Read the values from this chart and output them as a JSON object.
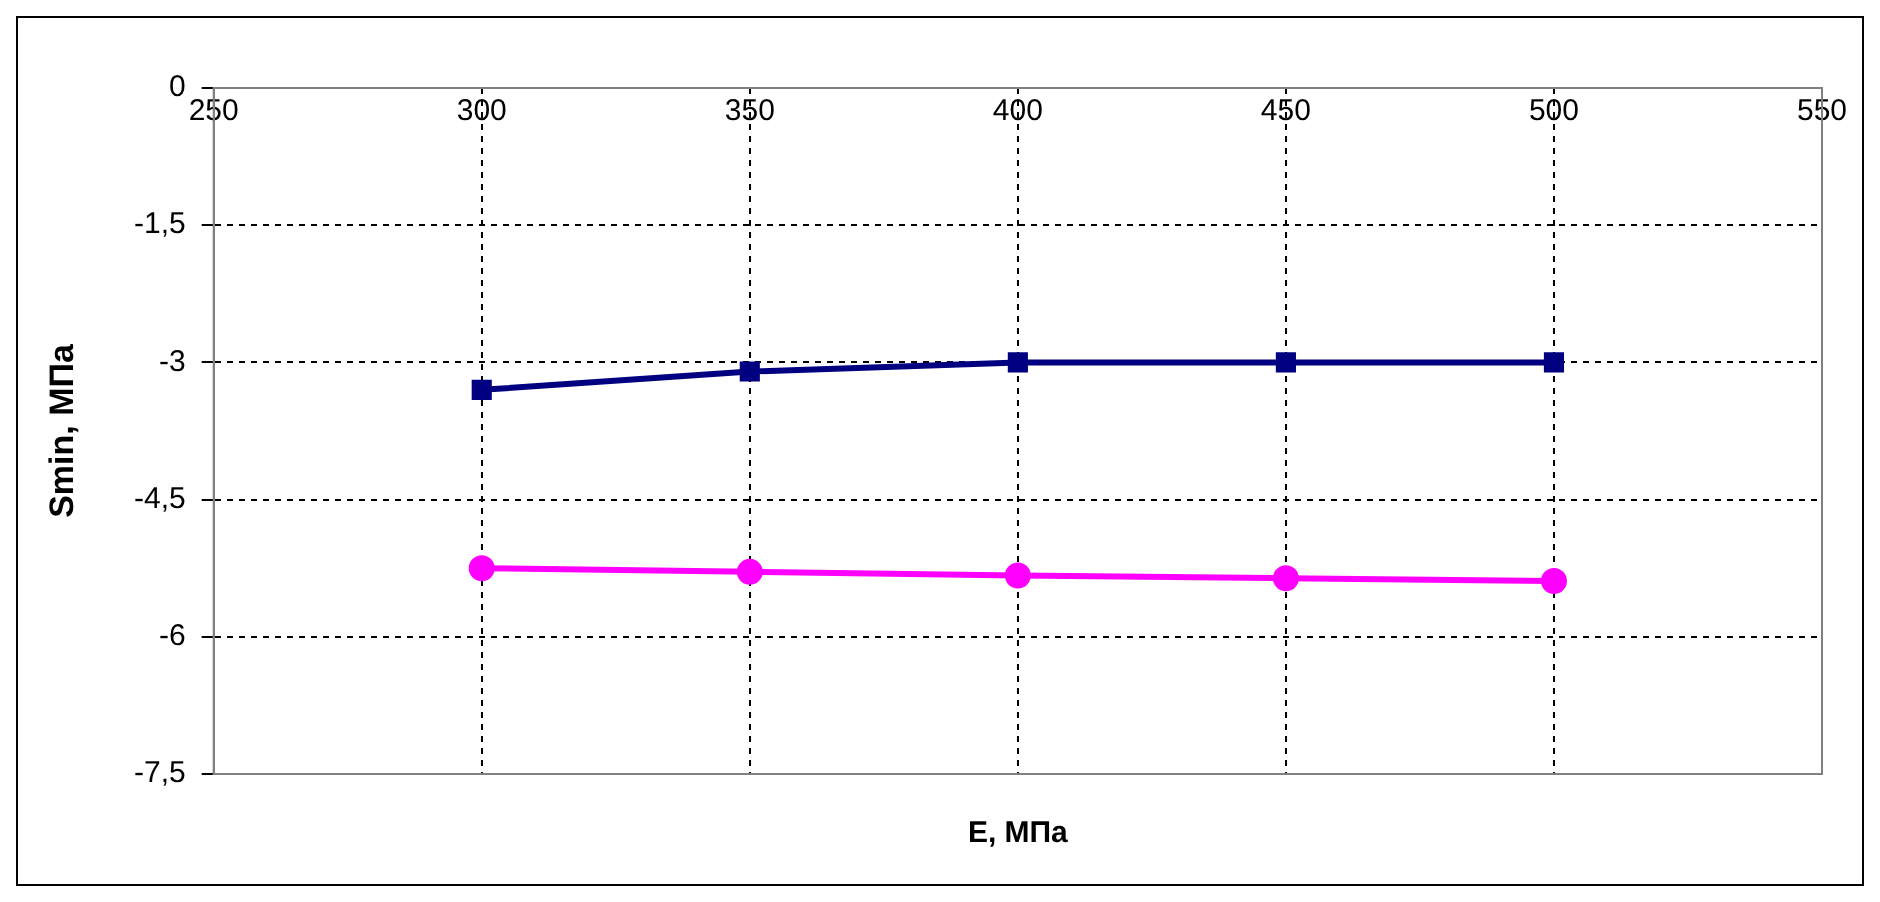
{
  "chart_data": {
    "type": "line",
    "xlabel": "E, МПа",
    "ylabel": "Smin, МПа",
    "x": [
      300,
      350,
      400,
      450,
      500
    ],
    "series": [
      {
        "color": "#000080",
        "values": [
          -3.3,
          -3.1,
          -3.0,
          -3.0,
          -3.0
        ],
        "marker": "square"
      },
      {
        "color": "#ff00ff",
        "values": [
          -5.25,
          -5.29,
          -5.33,
          -5.36,
          -5.39
        ],
        "marker": "circle"
      }
    ],
    "xlim": [
      250,
      550
    ],
    "xticks": [
      250,
      300,
      350,
      400,
      450,
      500,
      550
    ],
    "ylim": [
      -7.5,
      0
    ],
    "yticks": [
      0,
      {
        "value": -1.5,
        "label": "-1,5"
      },
      -3,
      {
        "value": -4.5,
        "label": "-4,5"
      },
      -6,
      {
        "value": -7.5,
        "label": "-7,5"
      }
    ],
    "grid": true,
    "legend": false,
    "line_style": "solid"
  }
}
